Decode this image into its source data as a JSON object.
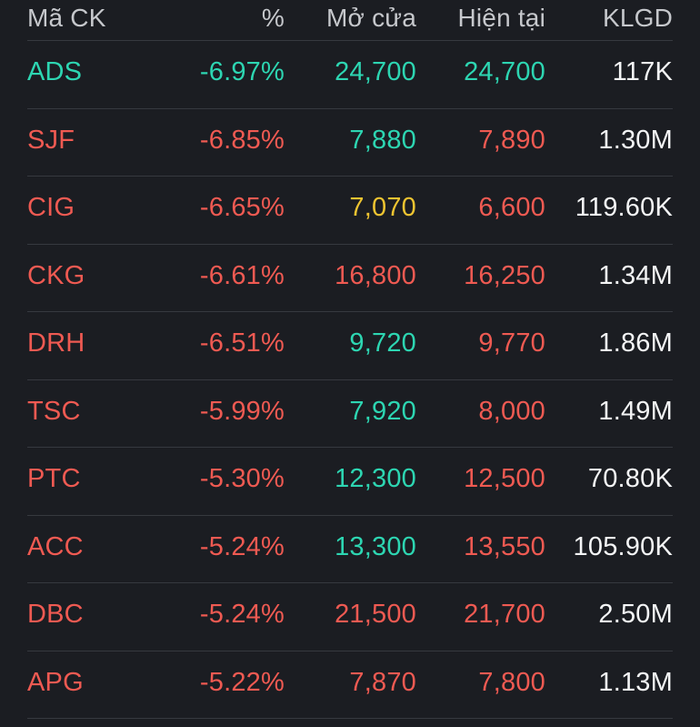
{
  "theme": {
    "bg": "#1b1d22",
    "divider": "#36393f",
    "header-text": "#c6c8cc"
  },
  "colors": {
    "floor": "#2dd6b2",
    "down": "#ef5a52",
    "reference": "#eec431",
    "neutral": "#f4f5f6"
  },
  "table": {
    "columns": [
      {
        "id": "code",
        "label": "Mã CK"
      },
      {
        "id": "percent",
        "label": "%"
      },
      {
        "id": "open",
        "label": "Mở cửa"
      },
      {
        "id": "current",
        "label": "Hiện tại"
      },
      {
        "id": "volume",
        "label": "KLGD"
      }
    ],
    "rows": [
      {
        "cells": [
          {
            "text": "ADS",
            "color": "floor"
          },
          {
            "text": "-6.97%",
            "color": "floor"
          },
          {
            "text": "24,700",
            "color": "floor"
          },
          {
            "text": "24,700",
            "color": "floor"
          },
          {
            "text": "117K",
            "color": "neutral"
          }
        ]
      },
      {
        "cells": [
          {
            "text": "SJF",
            "color": "down"
          },
          {
            "text": "-6.85%",
            "color": "down"
          },
          {
            "text": "7,880",
            "color": "floor"
          },
          {
            "text": "7,890",
            "color": "down"
          },
          {
            "text": "1.30M",
            "color": "neutral"
          }
        ]
      },
      {
        "cells": [
          {
            "text": "CIG",
            "color": "down"
          },
          {
            "text": "-6.65%",
            "color": "down"
          },
          {
            "text": "7,070",
            "color": "reference"
          },
          {
            "text": "6,600",
            "color": "down"
          },
          {
            "text": "119.60K",
            "color": "neutral"
          }
        ]
      },
      {
        "cells": [
          {
            "text": "CKG",
            "color": "down"
          },
          {
            "text": "-6.61%",
            "color": "down"
          },
          {
            "text": "16,800",
            "color": "down"
          },
          {
            "text": "16,250",
            "color": "down"
          },
          {
            "text": "1.34M",
            "color": "neutral"
          }
        ]
      },
      {
        "cells": [
          {
            "text": "DRH",
            "color": "down"
          },
          {
            "text": "-6.51%",
            "color": "down"
          },
          {
            "text": "9,720",
            "color": "floor"
          },
          {
            "text": "9,770",
            "color": "down"
          },
          {
            "text": "1.86M",
            "color": "neutral"
          }
        ]
      },
      {
        "cells": [
          {
            "text": "TSC",
            "color": "down"
          },
          {
            "text": "-5.99%",
            "color": "down"
          },
          {
            "text": "7,920",
            "color": "floor"
          },
          {
            "text": "8,000",
            "color": "down"
          },
          {
            "text": "1.49M",
            "color": "neutral"
          }
        ]
      },
      {
        "cells": [
          {
            "text": "PTC",
            "color": "down"
          },
          {
            "text": "-5.30%",
            "color": "down"
          },
          {
            "text": "12,300",
            "color": "floor"
          },
          {
            "text": "12,500",
            "color": "down"
          },
          {
            "text": "70.80K",
            "color": "neutral"
          }
        ]
      },
      {
        "cells": [
          {
            "text": "ACC",
            "color": "down"
          },
          {
            "text": "-5.24%",
            "color": "down"
          },
          {
            "text": "13,300",
            "color": "floor"
          },
          {
            "text": "13,550",
            "color": "down"
          },
          {
            "text": "105.90K",
            "color": "neutral"
          }
        ]
      },
      {
        "cells": [
          {
            "text": "DBC",
            "color": "down"
          },
          {
            "text": "-5.24%",
            "color": "down"
          },
          {
            "text": "21,500",
            "color": "down"
          },
          {
            "text": "21,700",
            "color": "down"
          },
          {
            "text": "2.50M",
            "color": "neutral"
          }
        ]
      },
      {
        "cells": [
          {
            "text": "APG",
            "color": "down"
          },
          {
            "text": "-5.22%",
            "color": "down"
          },
          {
            "text": "7,870",
            "color": "down"
          },
          {
            "text": "7,800",
            "color": "down"
          },
          {
            "text": "1.13M",
            "color": "neutral"
          }
        ]
      }
    ]
  }
}
